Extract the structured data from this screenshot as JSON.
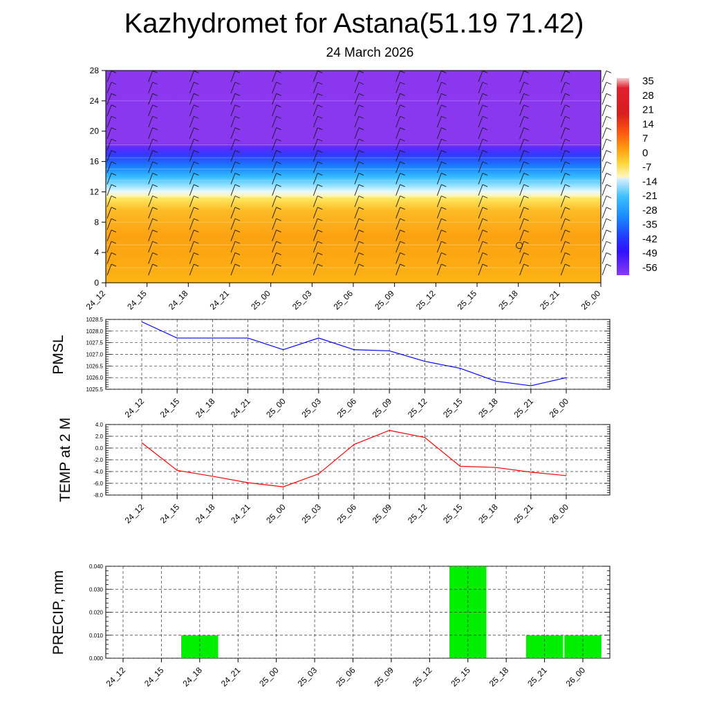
{
  "header": {
    "title": "Kazhydromet for Astana(51.19 71.42)",
    "date": "24 March 2026"
  },
  "chart_data": [
    {
      "type": "heatmap",
      "title": "",
      "xlabel": "",
      "ylabel": "",
      "x_ticks": [
        "24_12",
        "24_15",
        "24_18",
        "24_21",
        "25_00",
        "25_03",
        "25_06",
        "25_09",
        "25_12",
        "25_15",
        "25_18",
        "25_21",
        "26_00"
      ],
      "y_ticks": [
        "0",
        "4",
        "8",
        "12",
        "16",
        "20",
        "24",
        "28"
      ],
      "ylim": [
        0,
        28
      ],
      "colorbar_labels": [
        "35",
        "28",
        "21",
        "14",
        "7",
        "0",
        "-7",
        "-14",
        "-21",
        "-28",
        "-35",
        "-42",
        "-49",
        "-56"
      ],
      "description_bands": [
        {
          "from": 0,
          "to": 11.5,
          "value_range": [
            0,
            14
          ]
        },
        {
          "from": 11.5,
          "to": 13,
          "value_range": [
            -14,
            0
          ]
        },
        {
          "from": 13,
          "to": 18.5,
          "value_range": [
            -56,
            -14
          ]
        },
        {
          "from": 18.5,
          "to": 28,
          "value_range": [
            -60,
            -56
          ]
        }
      ]
    },
    {
      "type": "line",
      "ylabel": "PMSL",
      "categories": [
        "24_12",
        "24_15",
        "24_18",
        "24_21",
        "25_00",
        "25_03",
        "25_06",
        "25_09",
        "25_12",
        "25_15",
        "25_18",
        "25_21",
        "26_00"
      ],
      "values": [
        1028.4,
        1027.7,
        1027.7,
        1027.7,
        1027.2,
        1027.7,
        1027.2,
        1027.15,
        1026.7,
        1026.4,
        1025.85,
        1025.65,
        1026.0
      ],
      "ylim": [
        1025.5,
        1028.5
      ],
      "y_ticks": [
        "1025.5",
        "1026.0",
        "1026.5",
        "1027.0",
        "1027.5",
        "1028.0",
        "1028.5"
      ],
      "color": "#0000ff",
      "grid": true
    },
    {
      "type": "line",
      "ylabel": "TEMP at 2 M",
      "categories": [
        "24_12",
        "24_15",
        "24_18",
        "24_21",
        "25_00",
        "25_03",
        "25_06",
        "25_09",
        "25_12",
        "25_15",
        "25_18",
        "25_21",
        "26_00"
      ],
      "values": [
        0.9,
        -3.8,
        -4.8,
        -5.9,
        -6.6,
        -4.4,
        0.6,
        3.0,
        1.8,
        -3.1,
        -3.3,
        -4.1,
        -4.7
      ],
      "ylim": [
        -8,
        4
      ],
      "y_ticks": [
        "-8.0",
        "-6.0",
        "-4.0",
        "-2.0",
        "0.0",
        "2.0",
        "4.0"
      ],
      "color": "#ff0000",
      "grid": true
    },
    {
      "type": "bar",
      "ylabel": "PRECIP, mm",
      "categories": [
        "24_12",
        "24_15",
        "24_18",
        "24_21",
        "25_00",
        "25_03",
        "25_06",
        "25_09",
        "25_12",
        "25_15",
        "25_18",
        "25_21",
        "26_00"
      ],
      "values": [
        0,
        0,
        0.01,
        0,
        0,
        0,
        0,
        0,
        0,
        0.04,
        0,
        0.01,
        0.01
      ],
      "ylim": [
        0,
        0.04
      ],
      "y_ticks": [
        "0.000",
        "0.010",
        "0.020",
        "0.030",
        "0.040"
      ],
      "color": "#00ee00",
      "grid": true
    }
  ]
}
